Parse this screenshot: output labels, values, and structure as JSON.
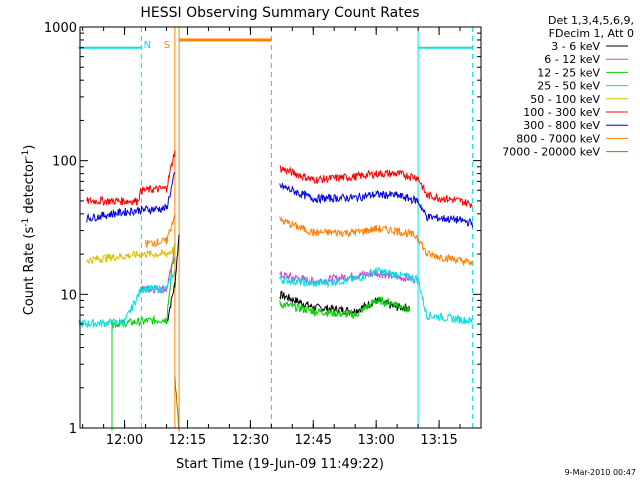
{
  "chart_data": {
    "type": "line",
    "title": "HESSI Observing Summary Count Rates",
    "xlabel": "Start Time (19-Jun-09 11:49:22)",
    "ylabel_main": "Count Rate (s",
    "ylabel_sup1": "-1",
    "ylabel_mid": " detector",
    "ylabel_sup2": "-1",
    "ylabel_end": ")",
    "yscale": "log",
    "ylim": [
      1,
      1000
    ],
    "xlim": [
      "11:49:22",
      "13:25:00"
    ],
    "y_ticks": [
      {
        "value": 1,
        "label": "1"
      },
      {
        "value": 10,
        "label": "10"
      },
      {
        "value": 100,
        "label": "100"
      },
      {
        "value": 1000,
        "label": "1000"
      }
    ],
    "x_ticks": [
      {
        "value": "12:00",
        "label": "12:00"
      },
      {
        "value": "12:15",
        "label": "12:15"
      },
      {
        "value": "12:30",
        "label": "12:30"
      },
      {
        "value": "12:45",
        "label": "12:45"
      },
      {
        "value": "13:00",
        "label": "13:00"
      },
      {
        "value": "13:15",
        "label": "13:15"
      }
    ],
    "legend_header": [
      "Det 1,3,4,5,6,9,",
      "FDecim 1, Att 0"
    ],
    "legend_position": "right",
    "markers": [
      {
        "label": "N",
        "time": "12:04",
        "color": "#00e0e0",
        "style": "dashed"
      },
      {
        "label": "S",
        "time": "12:12",
        "color": "#ff8000",
        "style": "solid"
      }
    ],
    "vlines": [
      {
        "time": "12:12",
        "color": "#ff8000",
        "style": "solid"
      },
      {
        "time": "12:13",
        "color": "#ff8000",
        "style": "solid"
      },
      {
        "time": "12:35",
        "color": "#ff8000",
        "style": "dashed"
      },
      {
        "time": "13:10",
        "color": "#00e0e0",
        "style": "solid"
      },
      {
        "time": "13:23",
        "color": "#00e0e0",
        "style": "dashed"
      }
    ],
    "footer": "9-Mar-2010 00:47",
    "series": [
      {
        "name": "3 - 6 keV",
        "color": "#000000",
        "points": [
          [
            "12:10",
            6
          ],
          [
            "12:12",
            12
          ],
          [
            "12:13",
            28
          ],
          [
            "GAP",
            0
          ],
          [
            "12:37",
            10
          ],
          [
            "12:45",
            8
          ],
          [
            "12:55",
            7.5
          ],
          [
            "13:00",
            9
          ],
          [
            "13:05",
            8
          ],
          [
            "13:08",
            8
          ]
        ]
      },
      {
        "name": "6 - 12 keV",
        "color": "#d040d0",
        "points": [
          [
            "12:04",
            11
          ],
          [
            "12:10",
            11
          ],
          [
            "12:12",
            20
          ],
          [
            "GAP",
            0
          ],
          [
            "12:37",
            14
          ],
          [
            "12:45",
            12.5
          ],
          [
            "13:00",
            14.5
          ],
          [
            "13:05",
            13.5
          ],
          [
            "13:10",
            13
          ]
        ]
      },
      {
        "name": "12 - 25 keV",
        "color": "#00d000",
        "points": [
          [
            "11:57",
            1
          ],
          [
            "11:57",
            6
          ],
          [
            "12:10",
            6.5
          ],
          [
            "12:12",
            25
          ],
          [
            "GAP",
            0
          ],
          [
            "12:37",
            8.5
          ],
          [
            "12:45",
            7.5
          ],
          [
            "12:55",
            7
          ],
          [
            "13:00",
            9
          ],
          [
            "13:05",
            8.5
          ],
          [
            "13:08",
            7.5
          ]
        ]
      },
      {
        "name": "25 - 50 keV",
        "color": "#00e0e0",
        "points": [
          [
            "11:49",
            6
          ],
          [
            "12:00",
            6.2
          ],
          [
            "12:04",
            11
          ],
          [
            "12:10",
            11
          ],
          [
            "12:12",
            15
          ],
          [
            "GAP",
            0
          ],
          [
            "12:37",
            13
          ],
          [
            "12:45",
            12
          ],
          [
            "12:55",
            13
          ],
          [
            "13:00",
            15
          ],
          [
            "13:05",
            14
          ],
          [
            "13:10",
            13
          ],
          [
            "13:12",
            7
          ],
          [
            "13:20",
            6.5
          ],
          [
            "13:23",
            6.3
          ]
        ]
      },
      {
        "name": "50 - 100 keV",
        "color": "#d8c000",
        "points": [
          [
            "11:51",
            18
          ],
          [
            "11:57",
            19
          ],
          [
            "12:05",
            20
          ],
          [
            "12:10",
            20
          ],
          [
            "12:12",
            22
          ]
        ]
      },
      {
        "name": "100 - 300 keV",
        "color": "#ff0000",
        "points": [
          [
            "11:51",
            50
          ],
          [
            "11:57",
            50
          ],
          [
            "12:03",
            50
          ],
          [
            "12:04",
            60
          ],
          [
            "12:10",
            62
          ],
          [
            "12:12",
            120
          ],
          [
            "GAP",
            0
          ],
          [
            "12:37",
            88
          ],
          [
            "12:45",
            72
          ],
          [
            "12:55",
            76
          ],
          [
            "13:00",
            80
          ],
          [
            "13:05",
            80
          ],
          [
            "13:10",
            75
          ],
          [
            "13:12",
            55
          ],
          [
            "13:20",
            50
          ],
          [
            "13:23",
            47
          ]
        ]
      },
      {
        "name": "300 - 800 keV",
        "color": "#0000e0",
        "points": [
          [
            "11:51",
            37
          ],
          [
            "11:57",
            40
          ],
          [
            "12:04",
            43
          ],
          [
            "12:10",
            44
          ],
          [
            "12:12",
            80
          ],
          [
            "GAP",
            0
          ],
          [
            "12:37",
            65
          ],
          [
            "12:45",
            52
          ],
          [
            "12:55",
            53
          ],
          [
            "13:00",
            56
          ],
          [
            "13:05",
            55
          ],
          [
            "13:10",
            50
          ],
          [
            "13:12",
            38
          ],
          [
            "13:20",
            36
          ],
          [
            "13:23",
            34
          ]
        ]
      },
      {
        "name": "800 - 7000 keV",
        "color": "#ff8000",
        "points": [
          [
            "12:05",
            24
          ],
          [
            "12:10",
            25
          ],
          [
            "12:12",
            40
          ],
          [
            "GAP",
            0
          ],
          [
            "12:13",
            800
          ],
          [
            "12:35",
            800
          ],
          [
            "GAP",
            0
          ],
          [
            "12:37",
            36
          ],
          [
            "12:45",
            29
          ],
          [
            "12:55",
            29
          ],
          [
            "13:00",
            31
          ],
          [
            "13:05",
            30
          ],
          [
            "13:10",
            27
          ],
          [
            "13:12",
            20
          ],
          [
            "13:20",
            18
          ],
          [
            "13:23",
            17
          ]
        ]
      },
      {
        "name": "7000 - 20000 keV",
        "color": "#a07000",
        "points": [
          [
            "12:12",
            2.3
          ],
          [
            "12:13",
            1
          ]
        ]
      }
    ],
    "cyan_top_segments": [
      {
        "start": "11:49",
        "end": "12:04",
        "value": 700
      },
      {
        "start": "13:10",
        "end": "13:23",
        "value": 700
      }
    ]
  }
}
